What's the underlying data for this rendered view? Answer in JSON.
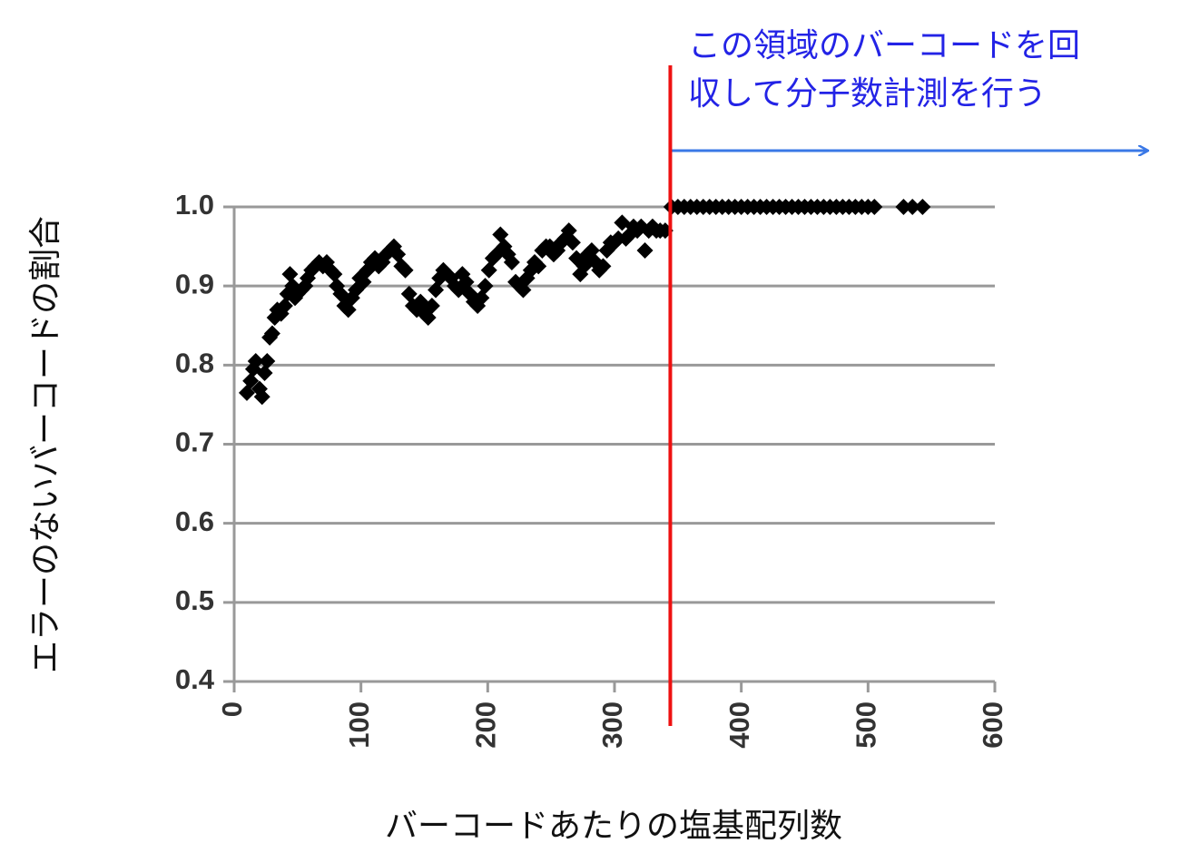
{
  "chart_data": {
    "type": "scatter",
    "xlabel": "バーコードあたりの塩基配列数",
    "ylabel": "エラーのないバーコードの割合",
    "annotation": [
      "この領域のバーコードを回",
      "収して分子数計測を行う"
    ],
    "threshold_x": 344,
    "threshold_color": "#ee1111",
    "grid": true,
    "xlim": [
      0,
      600
    ],
    "xticks": [
      0,
      100,
      200,
      300,
      400,
      500,
      600
    ],
    "ylim": [
      0.4,
      1.0
    ],
    "yticks": [
      {
        "value": 0.4,
        "label": "0.4"
      },
      {
        "value": 0.5,
        "label": "0.5"
      },
      {
        "value": 0.6,
        "label": "0.6"
      },
      {
        "value": 0.7,
        "label": "0.7"
      },
      {
        "value": 0.8,
        "label": "0.8"
      },
      {
        "value": 0.9,
        "label": "0.9"
      },
      {
        "value": 1,
        "label": "1.0"
      }
    ],
    "series": [
      {
        "color": "#000000",
        "x": [
          10,
          13,
          15,
          17,
          20,
          22,
          24,
          26,
          28,
          30,
          32,
          34,
          37,
          40,
          42,
          44,
          46,
          48,
          50,
          53,
          56,
          58,
          61,
          64,
          67,
          70,
          73,
          76,
          79,
          81,
          84,
          87,
          90,
          93,
          96,
          99,
          102,
          105,
          108,
          111,
          114,
          117,
          120,
          123,
          126,
          129,
          132,
          135,
          138,
          141,
          144,
          147,
          150,
          153,
          156,
          159,
          162,
          165,
          168,
          171,
          174,
          177,
          180,
          183,
          186,
          189,
          192,
          195,
          198,
          201,
          204,
          207,
          210,
          213,
          216,
          219,
          222,
          225,
          228,
          231,
          234,
          237,
          240,
          243,
          246,
          249,
          252,
          255,
          258,
          261,
          264,
          267,
          270,
          273,
          276,
          279,
          282,
          285,
          288,
          291,
          294,
          297,
          300,
          303,
          306,
          309,
          312,
          315,
          318,
          321,
          324,
          327,
          330,
          333,
          336,
          340,
          345,
          350,
          355,
          360,
          365,
          370,
          375,
          380,
          385,
          390,
          395,
          400,
          405,
          410,
          415,
          420,
          425,
          430,
          435,
          440,
          445,
          450,
          455,
          460,
          465,
          470,
          475,
          480,
          485,
          490,
          495,
          500,
          505,
          528,
          535,
          543
        ],
        "values": [
          0.765,
          0.78,
          0.795,
          0.805,
          0.77,
          0.76,
          0.79,
          0.805,
          0.835,
          0.84,
          0.86,
          0.87,
          0.865,
          0.875,
          0.89,
          0.915,
          0.9,
          0.885,
          0.89,
          0.895,
          0.9,
          0.91,
          0.92,
          0.925,
          0.93,
          0.925,
          0.93,
          0.92,
          0.915,
          0.9,
          0.89,
          0.875,
          0.87,
          0.885,
          0.895,
          0.91,
          0.905,
          0.92,
          0.93,
          0.935,
          0.925,
          0.93,
          0.94,
          0.945,
          0.95,
          0.94,
          0.925,
          0.92,
          0.89,
          0.875,
          0.87,
          0.88,
          0.865,
          0.86,
          0.875,
          0.895,
          0.91,
          0.92,
          0.915,
          0.91,
          0.9,
          0.895,
          0.915,
          0.905,
          0.89,
          0.88,
          0.875,
          0.885,
          0.9,
          0.92,
          0.935,
          0.94,
          0.965,
          0.95,
          0.94,
          0.93,
          0.905,
          0.9,
          0.895,
          0.91,
          0.92,
          0.93,
          0.925,
          0.945,
          0.95,
          0.95,
          0.94,
          0.945,
          0.955,
          0.96,
          0.97,
          0.955,
          0.935,
          0.915,
          0.925,
          0.94,
          0.945,
          0.93,
          0.92,
          0.925,
          0.945,
          0.955,
          0.955,
          0.96,
          0.98,
          0.96,
          0.965,
          0.975,
          0.97,
          0.975,
          0.945,
          0.97,
          0.975,
          0.97,
          0.97,
          0.97,
          1,
          1,
          1,
          1,
          1,
          1,
          1,
          1,
          1,
          1,
          1,
          1,
          1,
          1,
          1,
          1,
          1,
          1,
          1,
          1,
          1,
          1,
          1,
          1,
          1,
          1,
          1,
          1,
          1,
          1,
          1,
          1,
          1,
          1,
          1,
          1
        ]
      }
    ]
  }
}
